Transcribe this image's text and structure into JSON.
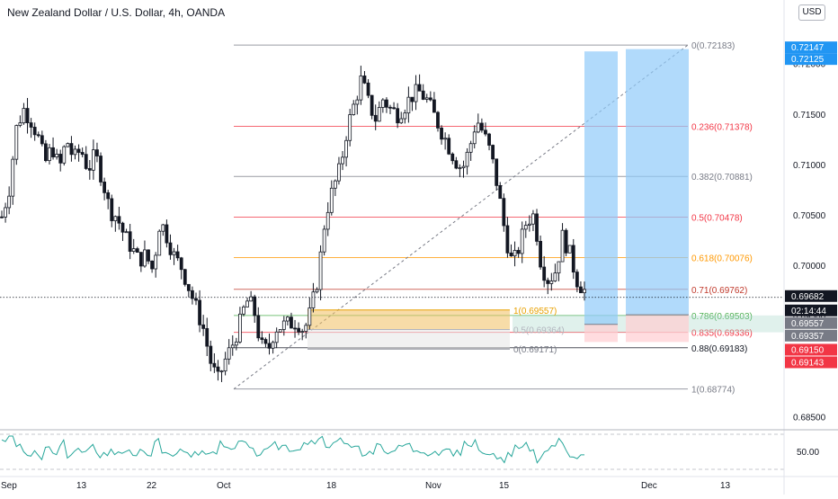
{
  "header": {
    "title": "New Zealand Dollar / U.S. Dollar, 4h, OANDA",
    "currency_button": "USD"
  },
  "fib_retracement": {
    "levels": [
      {
        "label": "0(0.72183)",
        "value": 0.72183,
        "color": "#787b86"
      },
      {
        "label": "0.236(0.71378)",
        "value": 0.71378,
        "color": "#f23645"
      },
      {
        "label": "0.382(0.70881)",
        "value": 0.70881,
        "color": "#787b86"
      },
      {
        "label": "0.5(0.70478)",
        "value": 0.70478,
        "color": "#f23645"
      },
      {
        "label": "0.618(0.70076)",
        "value": 0.70076,
        "color": "#ff9800"
      },
      {
        "label": "0.71(0.69762)",
        "value": 0.69762,
        "color": "#c0392b"
      },
      {
        "label": "0.786(0.69503)",
        "value": 0.69503,
        "color": "#4caf50"
      },
      {
        "label": "0.835(0.69336)",
        "value": 0.69336,
        "color": "#f23645"
      },
      {
        "label": "0.88(0.69183)",
        "value": 0.69183,
        "color": "#131722"
      },
      {
        "label": "1(0.68774)",
        "value": 0.68774,
        "color": "#787b86"
      }
    ]
  },
  "box_fib": {
    "levels": [
      {
        "label": "1(0.69557)",
        "value": 0.69557,
        "color": "#e8a000"
      },
      {
        "label": "0.5(0.69364)",
        "value": 0.69364,
        "color": "#b2b5be"
      },
      {
        "label": "0(0.69171)",
        "value": 0.69171,
        "color": "#787b86"
      }
    ]
  },
  "price_axis": {
    "ticks": [
      "0.72000",
      "0.71500",
      "0.71000",
      "0.70500",
      "0.70000",
      "0.69500",
      "0.68500"
    ],
    "tick_values": [
      0.72,
      0.715,
      0.71,
      0.705,
      0.7,
      0.695,
      0.685
    ],
    "labels": [
      {
        "text": "0.72147",
        "value": 0.72147,
        "bg": "#2196f3",
        "fg": "#ffffff"
      },
      {
        "text": "0.72125",
        "value": 0.72125,
        "bg": "#2196f3",
        "fg": "#ffffff"
      },
      {
        "text": "0.69682",
        "value": 0.69682,
        "bg": "#131722",
        "fg": "#ffffff"
      },
      {
        "text": "02:14:44",
        "value": 0.69682,
        "bg": "#131722",
        "fg": "#ffffff",
        "below": true
      },
      {
        "text": "0.69557",
        "value": 0.69557,
        "bg": "#787b86",
        "fg": "#ffffff"
      },
      {
        "text": "0.69357",
        "value": 0.69357,
        "bg": "#787b86",
        "fg": "#ffffff"
      },
      {
        "text": "0.69150",
        "value": 0.6915,
        "bg": "#f23645",
        "fg": "#ffffff"
      },
      {
        "text": "0.69143",
        "value": 0.69143,
        "bg": "#f23645",
        "fg": "#ffffff"
      }
    ]
  },
  "time_axis": {
    "ticks": [
      "Sep",
      "13",
      "22",
      "Oct",
      "18",
      "Nov",
      "15",
      "Dec",
      "13"
    ]
  },
  "rsi": {
    "level_label": "50.00"
  },
  "chart_data": {
    "type": "candlestick",
    "title": "New Zealand Dollar / U.S. Dollar, 4h, OANDA",
    "symbol": "NZDUSD",
    "timeframe": "4h",
    "ylim": [
      0.6837,
      0.7238
    ],
    "close_path": [
      [
        0,
        0.7048
      ],
      [
        1,
        0.7075
      ],
      [
        2,
        0.7135
      ],
      [
        3,
        0.7155
      ],
      [
        4,
        0.7145
      ],
      [
        5,
        0.7128
      ],
      [
        6,
        0.7101
      ],
      [
        7,
        0.7118
      ],
      [
        8,
        0.7095
      ],
      [
        9,
        0.7125
      ],
      [
        10,
        0.7105
      ],
      [
        11,
        0.7115
      ],
      [
        12,
        0.7095
      ],
      [
        13,
        0.711
      ],
      [
        14,
        0.7085
      ],
      [
        15,
        0.7055
      ],
      [
        16,
        0.7048
      ],
      [
        17,
        0.703
      ],
      [
        18,
        0.7018
      ],
      [
        19,
        0.7005
      ],
      [
        20,
        0.701
      ],
      [
        21,
        0.6995
      ],
      [
        22,
        0.7045
      ],
      [
        23,
        0.7028
      ],
      [
        24,
        0.7008
      ],
      [
        25,
        0.6998
      ],
      [
        26,
        0.6978
      ],
      [
        27,
        0.6958
      ],
      [
        28,
        0.6938
      ],
      [
        29,
        0.6905
      ],
      [
        30,
        0.6885
      ],
      [
        31,
        0.6905
      ],
      [
        32,
        0.692
      ],
      [
        33,
        0.694
      ],
      [
        34,
        0.6965
      ],
      [
        35,
        0.6958
      ],
      [
        36,
        0.692
      ],
      [
        37,
        0.6915
      ],
      [
        38,
        0.6938
      ],
      [
        39,
        0.694
      ],
      [
        40,
        0.6942
      ],
      [
        41,
        0.6945
      ],
      [
        42,
        0.6935
      ],
      [
        43,
        0.6955
      ],
      [
        44,
        0.699
      ],
      [
        45,
        0.705
      ],
      [
        46,
        0.7075
      ],
      [
        47,
        0.7095
      ],
      [
        48,
        0.7135
      ],
      [
        49,
        0.716
      ],
      [
        50,
        0.7185
      ],
      [
        51,
        0.716
      ],
      [
        52,
        0.7145
      ],
      [
        53,
        0.7165
      ],
      [
        54,
        0.7155
      ],
      [
        55,
        0.715
      ],
      [
        56,
        0.7158
      ],
      [
        57,
        0.7168
      ],
      [
        58,
        0.7172
      ],
      [
        59,
        0.7165
      ],
      [
        60,
        0.715
      ],
      [
        61,
        0.7135
      ],
      [
        62,
        0.712
      ],
      [
        63,
        0.7105
      ],
      [
        64,
        0.7095
      ],
      [
        65,
        0.7115
      ],
      [
        66,
        0.7145
      ],
      [
        67,
        0.713
      ],
      [
        68,
        0.711
      ],
      [
        69,
        0.7075
      ],
      [
        70,
        0.703
      ],
      [
        71,
        0.7
      ],
      [
        72,
        0.702
      ],
      [
        73,
        0.7045
      ],
      [
        74,
        0.705
      ],
      [
        75,
        0.7
      ],
      [
        76,
        0.6985
      ],
      [
        77,
        0.6995
      ],
      [
        78,
        0.703
      ],
      [
        79,
        0.701
      ],
      [
        80,
        0.6985
      ],
      [
        81,
        0.6975
      ]
    ],
    "projection_boxes": [
      {
        "top": 0.7212,
        "mid": 0.69415,
        "bottom": 0.6924
      },
      {
        "top": 0.72143,
        "mid": 0.6951,
        "bottom": 0.6924
      }
    ]
  }
}
